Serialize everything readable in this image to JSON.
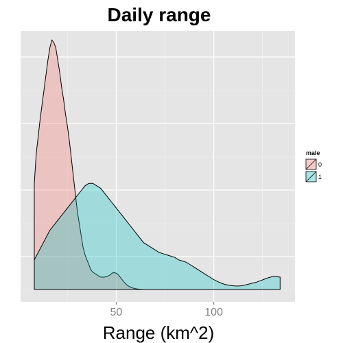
{
  "chart_data": {
    "type": "area",
    "title": "Daily range",
    "xlabel": "Range (km^2)",
    "ylabel": "",
    "xlim": [
      8,
      136
    ],
    "ylim": [
      0,
      1
    ],
    "x_ticks": [
      50,
      100
    ],
    "y_axis_ticks_shown": false,
    "grid": true,
    "legend": {
      "title": "male",
      "placement": "right"
    },
    "series": [
      {
        "name": "0",
        "color": "#F8766D",
        "x": [
          8,
          9,
          10,
          11,
          12,
          13,
          14,
          15,
          16,
          17,
          18,
          19,
          20,
          21,
          22,
          23,
          24,
          25,
          26,
          27,
          28,
          29,
          30,
          31,
          32,
          33,
          34,
          35,
          36,
          37,
          38,
          40,
          42,
          44,
          46,
          47,
          48,
          49,
          50,
          51,
          52,
          53,
          54,
          55,
          56,
          58,
          60,
          62,
          64,
          66
        ],
        "values": [
          0.43,
          0.55,
          0.62,
          0.69,
          0.75,
          0.81,
          0.87,
          0.93,
          0.98,
          1.01,
          1.0,
          0.98,
          0.93,
          0.88,
          0.82,
          0.77,
          0.71,
          0.66,
          0.6,
          0.53,
          0.46,
          0.39,
          0.32,
          0.27,
          0.22,
          0.17,
          0.14,
          0.12,
          0.1,
          0.08,
          0.07,
          0.06,
          0.05,
          0.05,
          0.055,
          0.06,
          0.067,
          0.068,
          0.066,
          0.06,
          0.05,
          0.04,
          0.03,
          0.022,
          0.015,
          0.007,
          0.003,
          0.001,
          0.0003,
          0.0
        ]
      },
      {
        "name": "1",
        "color": "#00BFC4",
        "x": [
          8,
          10,
          12,
          14,
          16,
          18,
          20,
          22,
          24,
          26,
          28,
          30,
          32,
          34,
          36,
          38,
          40,
          42,
          44,
          46,
          48,
          50,
          52,
          54,
          56,
          58,
          60,
          62,
          64,
          66,
          68,
          70,
          72,
          74,
          76,
          78,
          80,
          82,
          84,
          86,
          88,
          90,
          92,
          94,
          96,
          98,
          100,
          102,
          104,
          106,
          108,
          110,
          112,
          114,
          116,
          118,
          120,
          122,
          124,
          126,
          128,
          130,
          132,
          134
        ],
        "values": [
          0.12,
          0.15,
          0.18,
          0.21,
          0.24,
          0.26,
          0.28,
          0.3,
          0.32,
          0.34,
          0.36,
          0.38,
          0.4,
          0.42,
          0.43,
          0.43,
          0.42,
          0.41,
          0.39,
          0.37,
          0.35,
          0.33,
          0.31,
          0.29,
          0.27,
          0.25,
          0.23,
          0.21,
          0.19,
          0.18,
          0.17,
          0.16,
          0.15,
          0.145,
          0.14,
          0.135,
          0.13,
          0.12,
          0.115,
          0.11,
          0.1,
          0.09,
          0.08,
          0.07,
          0.06,
          0.05,
          0.04,
          0.032,
          0.025,
          0.02,
          0.017,
          0.015,
          0.014,
          0.015,
          0.018,
          0.022,
          0.026,
          0.03,
          0.036,
          0.042,
          0.048,
          0.052,
          0.052,
          0.05
        ]
      }
    ]
  }
}
